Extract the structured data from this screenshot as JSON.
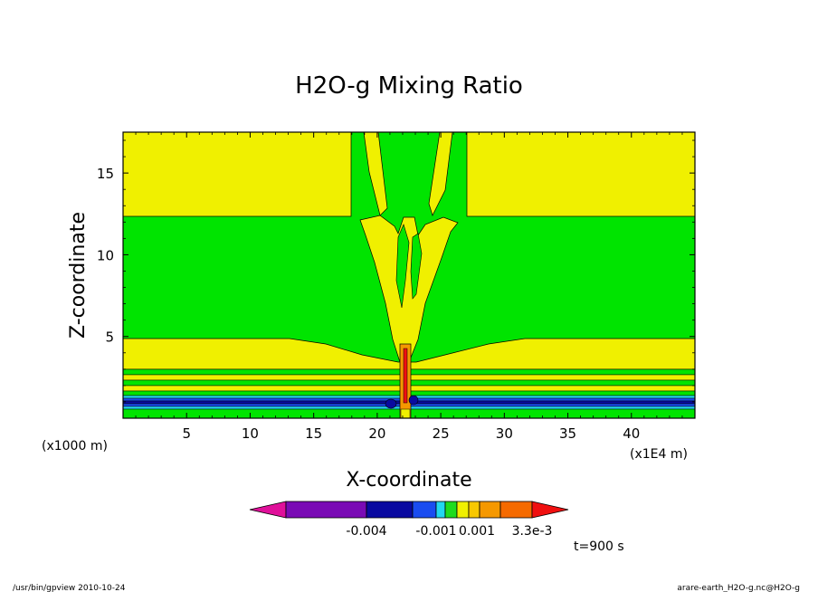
{
  "chart_data": {
    "type": "contour",
    "title": "H2O-g Mixing Ratio",
    "xlabel": "X-coordinate",
    "ylabel": "Z-coordinate",
    "x_unit_left": "(x1000 m)",
    "x_unit_right": "(x1E4 m)",
    "xlim": [
      0,
      45
    ],
    "ylim": [
      0,
      17.5
    ],
    "x_ticks": [
      5,
      10,
      15,
      20,
      25,
      30,
      35,
      40
    ],
    "y_ticks": [
      5,
      10,
      15
    ],
    "colorbar": {
      "colors": [
        "#e0109a",
        "#7a0bb5",
        "#0a0aa0",
        "#1a4cf0",
        "#22d7f0",
        "#1edc1e",
        "#f0f000",
        "#f8c800",
        "#f59800",
        "#f56a00",
        "#f01010"
      ],
      "labels": [
        "-0.004",
        "-0.001",
        "0.001",
        "3.3e-3"
      ]
    },
    "time_label": "t=900 s"
  },
  "footer": {
    "left": "/usr/bin/gpview   2010-10-24",
    "right": "arare-earth_H2O-g.nc@H2O-g"
  },
  "colors": {
    "green": "#00e400",
    "yellow": "#f0f000",
    "blue": "#1a4cf0",
    "navy": "#0a0aa0",
    "cyan": "#22d7f0",
    "orange": "#f59800",
    "red": "#f01010"
  }
}
